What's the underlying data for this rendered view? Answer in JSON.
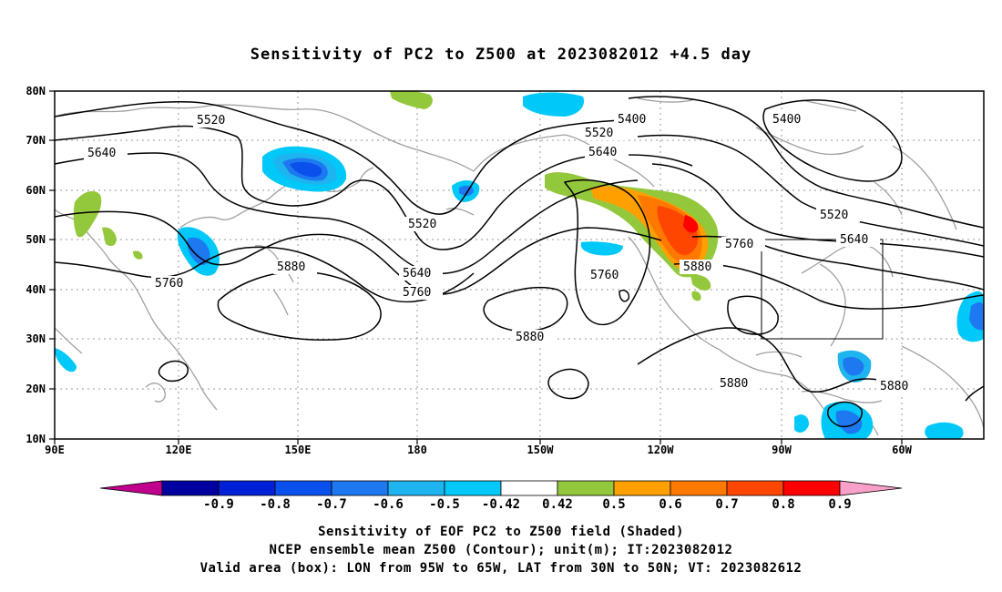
{
  "title": "Sensitivity of PC2 to Z500 at 2023082012 +4.5 day",
  "map": {
    "lon_labels": [
      "90E",
      "120E",
      "150E",
      "180",
      "150W",
      "120W",
      "90W",
      "60W"
    ],
    "lat_labels": [
      "80N",
      "70N",
      "60N",
      "50N",
      "40N",
      "30N",
      "20N",
      "10N"
    ],
    "contour_labels": [
      {
        "value": "5520"
      },
      {
        "value": "5640"
      },
      {
        "value": "5760"
      },
      {
        "value": "5880"
      },
      {
        "value": "5520"
      },
      {
        "value": "5640"
      },
      {
        "value": "5760"
      },
      {
        "value": "5880"
      },
      {
        "value": "5400"
      },
      {
        "value": "5520"
      },
      {
        "value": "5640"
      },
      {
        "value": "5760"
      },
      {
        "value": "5880"
      },
      {
        "value": "5760"
      },
      {
        "value": "5400"
      },
      {
        "value": "5520"
      },
      {
        "value": "5640"
      },
      {
        "value": "5880"
      },
      {
        "value": "5880"
      }
    ],
    "valid_box": {
      "lon_from": "95W",
      "lon_to": "65W",
      "lat_from": "30N",
      "lat_to": "50N"
    }
  },
  "colorbar": {
    "labels": [
      "-0.9",
      "-0.8",
      "-0.7",
      "-0.6",
      "-0.5",
      "-0.42",
      "0.42",
      "0.5",
      "0.6",
      "0.7",
      "0.8",
      "0.9"
    ],
    "colors": [
      "#c0008c",
      "#0000a0",
      "#0020d8",
      "#0a50ec",
      "#1e78f0",
      "#1eb4f0",
      "#00c8f8",
      "#ffffff",
      "#94c83c",
      "#ffa000",
      "#ff7800",
      "#ff4600",
      "#ff0000",
      "#f8a0c8"
    ]
  },
  "captions": [
    "Sensitivity of EOF PC2 to Z500 field (Shaded)",
    "NCEP ensemble mean Z500 (Contour); unit(m); IT:2023082012",
    "Valid area (box): LON from 95W to 65W, LAT from 30N to 50N; VT: 2023082612"
  ]
}
